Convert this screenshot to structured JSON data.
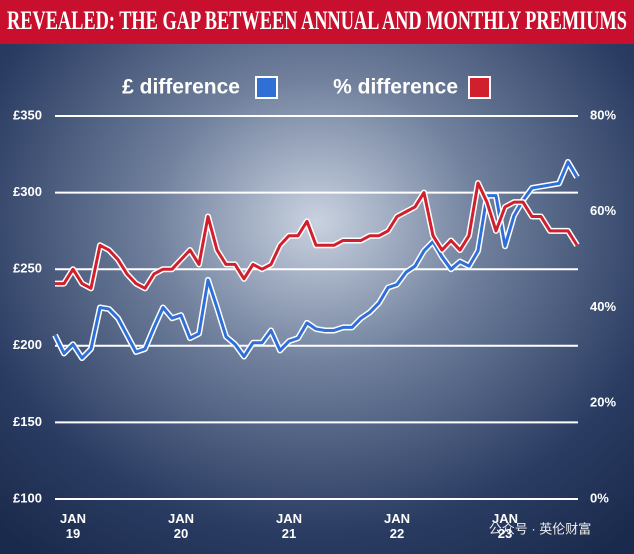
{
  "title": "REVEALED: THE GAP BETWEEN ANNUAL AND MONTHLY PREMIUMS",
  "watermark": "公众号 · 英伦财富",
  "chart_data": {
    "type": "line",
    "categories": [
      null,
      null,
      "JAN 19",
      null,
      null,
      null,
      null,
      null,
      null,
      null,
      null,
      null,
      null,
      null,
      "JAN 20",
      null,
      null,
      null,
      null,
      null,
      null,
      null,
      null,
      null,
      null,
      null,
      "JAN 21",
      null,
      null,
      null,
      null,
      null,
      null,
      null,
      null,
      null,
      null,
      null,
      "JAN 22",
      null,
      null,
      null,
      null,
      null,
      null,
      null,
      null,
      null,
      null,
      null,
      "JAN 23",
      null,
      null,
      null,
      null,
      null,
      null,
      null,
      null
    ],
    "series": [
      {
        "name": "£ difference",
        "color": "#2f6fd6",
        "values": [
          207,
          195,
          201,
          192,
          198,
          225,
          224,
          218,
          207,
          196,
          198,
          212,
          225,
          218,
          220,
          205,
          208,
          243,
          225,
          206,
          201,
          193,
          202,
          202,
          210,
          197,
          203,
          205,
          215,
          211,
          210,
          210,
          212,
          212,
          218,
          222,
          228,
          238,
          240,
          248,
          252,
          262,
          268,
          258,
          250,
          255,
          252,
          262,
          298,
          298,
          265,
          285,
          295,
          303,
          304,
          305,
          306,
          320,
          310
        ]
      },
      {
        "name": "% difference",
        "color": "#d0202e",
        "axis": "y2",
        "values": [
          45,
          45,
          48,
          45,
          44,
          53,
          52,
          50,
          47,
          45,
          44,
          47,
          48,
          48,
          50,
          52,
          49,
          59,
          52,
          49,
          49,
          46,
          49,
          48,
          49,
          53,
          55,
          55,
          58,
          53,
          53,
          53,
          54,
          54,
          54,
          55,
          55,
          56,
          59,
          60,
          61,
          64,
          55,
          52,
          54,
          52,
          55,
          66,
          62,
          56,
          61,
          62,
          62,
          59,
          59,
          56,
          56,
          56,
          53
        ]
      }
    ],
    "ylim": [
      100,
      350
    ],
    "yticks": [
      {
        "value": 100,
        "label": "£100"
      },
      {
        "value": 150,
        "label": "£150"
      },
      {
        "value": 200,
        "label": "£200"
      },
      {
        "value": 250,
        "label": "£250"
      },
      {
        "value": 300,
        "label": "£300"
      },
      {
        "value": 350,
        "label": "£350"
      }
    ],
    "y2lim": [
      0,
      80
    ],
    "y2ticks": [
      {
        "value": 0,
        "label": "0%"
      },
      {
        "value": 20,
        "label": "20%"
      },
      {
        "value": 40,
        "label": "40%"
      },
      {
        "value": 60,
        "label": "60%"
      },
      {
        "value": 80,
        "label": "80%"
      }
    ],
    "grid": true
  }
}
